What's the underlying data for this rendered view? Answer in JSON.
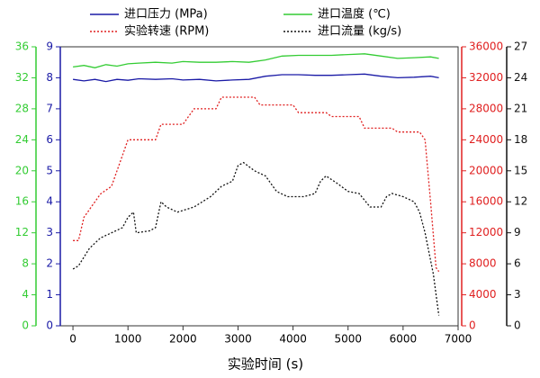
{
  "chart_data": {
    "type": "line",
    "x_label": "实验时间 (s)",
    "xlim": [
      -230,
      7000
    ],
    "xticks": [
      0,
      1000,
      2000,
      3000,
      4000,
      5000,
      6000,
      7000
    ],
    "series": [
      {
        "name": "进口压力 (MPa)",
        "color": "#1a1aa6",
        "dashed": false,
        "ylim": [
          0,
          9
        ],
        "yticks": [
          0,
          1,
          2,
          3,
          4,
          5,
          6,
          7,
          8,
          9
        ],
        "x": [
          0,
          200,
          400,
          600,
          800,
          1000,
          1200,
          1500,
          1800,
          2000,
          2300,
          2600,
          2900,
          3200,
          3500,
          3800,
          4100,
          4400,
          4700,
          5000,
          5300,
          5600,
          5900,
          6200,
          6500,
          6650
        ],
        "values": [
          7.95,
          7.9,
          7.95,
          7.88,
          7.95,
          7.92,
          7.97,
          7.95,
          7.97,
          7.93,
          7.95,
          7.9,
          7.93,
          7.95,
          8.05,
          8.1,
          8.1,
          8.08,
          8.08,
          8.1,
          8.12,
          8.05,
          8.0,
          8.02,
          8.05,
          8.0
        ]
      },
      {
        "name": "进口温度 (℃)",
        "color": "#33cc33",
        "dashed": false,
        "ylim": [
          0,
          36
        ],
        "yticks": [
          0,
          4,
          8,
          12,
          16,
          20,
          24,
          28,
          32,
          36
        ],
        "x": [
          0,
          200,
          400,
          600,
          800,
          1000,
          1200,
          1500,
          1800,
          2000,
          2300,
          2600,
          2900,
          3200,
          3500,
          3800,
          4100,
          4400,
          4700,
          5000,
          5300,
          5600,
          5900,
          6200,
          6500,
          6650
        ],
        "values": [
          33.4,
          33.6,
          33.3,
          33.7,
          33.5,
          33.8,
          33.9,
          34.0,
          33.9,
          34.1,
          34.0,
          34.0,
          34.1,
          34.0,
          34.3,
          34.8,
          34.9,
          34.9,
          34.9,
          35.0,
          35.1,
          34.8,
          34.5,
          34.6,
          34.7,
          34.5
        ]
      },
      {
        "name": "实验转速 (RPM)",
        "color": "#e02020",
        "dashed": true,
        "ylim": [
          0,
          36000
        ],
        "yticks": [
          0,
          4000,
          8000,
          12000,
          16000,
          20000,
          24000,
          28000,
          32000,
          36000
        ],
        "x": [
          0,
          100,
          200,
          300,
          400,
          500,
          600,
          700,
          800,
          900,
          1000,
          1500,
          1600,
          2000,
          2200,
          2600,
          2700,
          3300,
          3400,
          4000,
          4100,
          4600,
          4700,
          5200,
          5300,
          5800,
          5900,
          6300,
          6400,
          6500,
          6600,
          6650
        ],
        "values": [
          11000,
          11000,
          14000,
          15000,
          16000,
          17000,
          17500,
          18000,
          20000,
          22000,
          24000,
          24000,
          26000,
          26000,
          28000,
          28000,
          29500,
          29500,
          28500,
          28500,
          27500,
          27500,
          27000,
          27000,
          25500,
          25500,
          25000,
          25000,
          24000,
          16000,
          7500,
          7000
        ]
      },
      {
        "name": "进口流量 (kg/s)",
        "color": "#111111",
        "dashed": true,
        "ylim": [
          0,
          27
        ],
        "yticks": [
          0,
          3,
          6,
          9,
          12,
          15,
          18,
          21,
          24,
          27
        ],
        "x": [
          0,
          100,
          300,
          500,
          700,
          900,
          1000,
          1100,
          1150,
          1400,
          1500,
          1600,
          1700,
          1900,
          2200,
          2500,
          2700,
          2900,
          3000,
          3100,
          3300,
          3500,
          3700,
          3900,
          4200,
          4400,
          4500,
          4600,
          4800,
          5000,
          5200,
          5400,
          5600,
          5700,
          5800,
          6000,
          6200,
          6300,
          6400,
          6550,
          6650
        ],
        "values": [
          5.5,
          5.8,
          7.5,
          8.5,
          9.0,
          9.5,
          10.5,
          11.0,
          9.0,
          9.2,
          9.5,
          12.0,
          11.5,
          11.0,
          11.5,
          12.5,
          13.5,
          14.0,
          15.5,
          15.8,
          15.0,
          14.5,
          13.0,
          12.5,
          12.5,
          12.8,
          14.0,
          14.5,
          13.8,
          13.0,
          12.8,
          11.5,
          11.5,
          12.5,
          12.8,
          12.5,
          12.0,
          11.0,
          9.0,
          5.0,
          1.0
        ]
      }
    ]
  }
}
